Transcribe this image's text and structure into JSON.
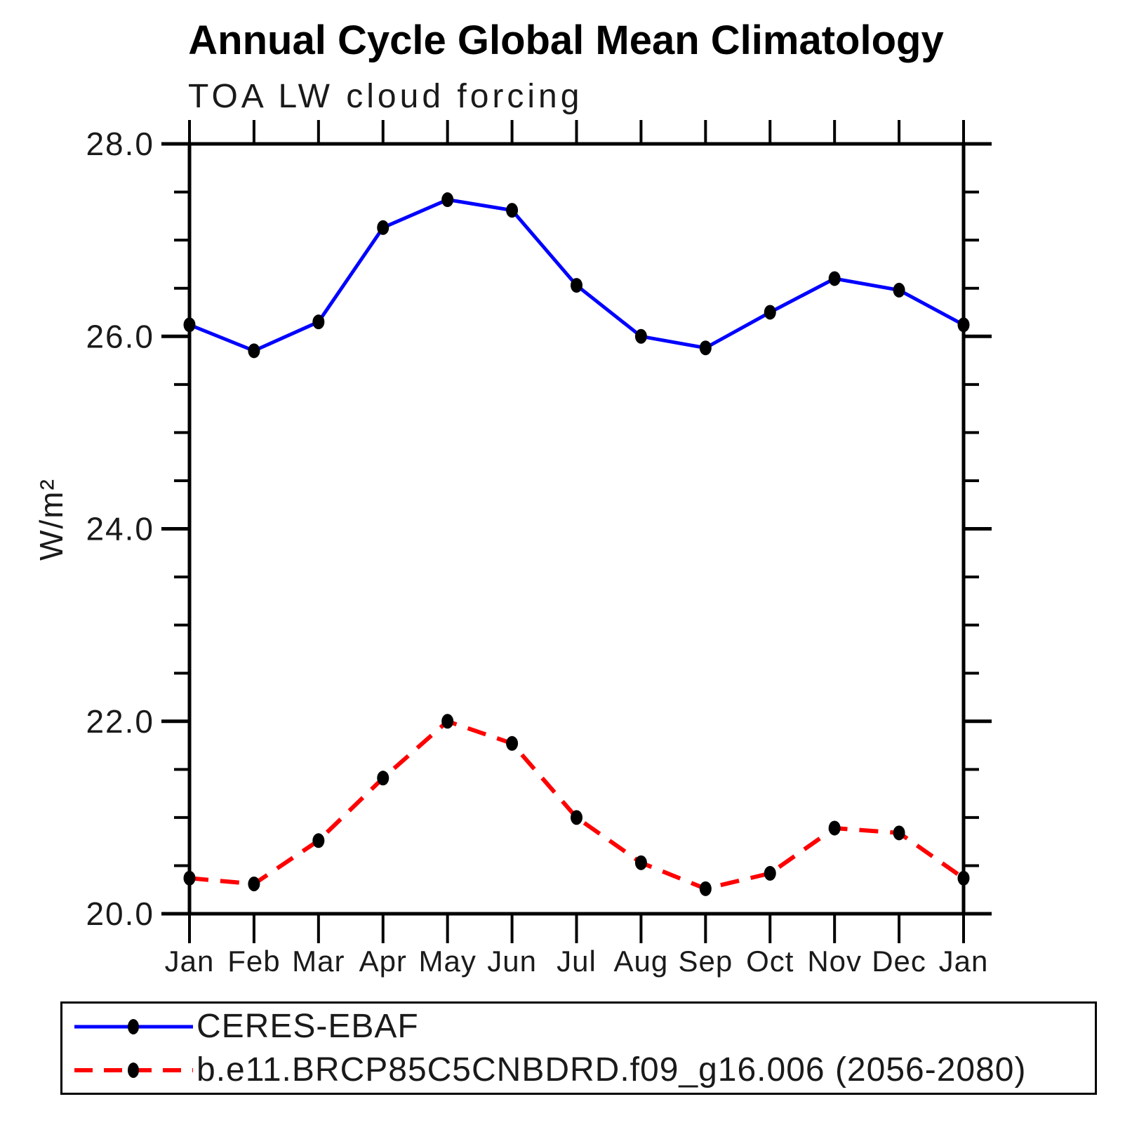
{
  "chart_data": {
    "type": "line",
    "title": "Annual Cycle Global Mean Climatology",
    "subtitle": "TOA LW cloud forcing",
    "ylabel": "W/m²",
    "xlabel": "",
    "ylim": [
      20.0,
      28.0
    ],
    "ytick_major_step": 2.0,
    "ytick_minor_step": 0.5,
    "ytick_labels": [
      "20.0",
      "22.0",
      "24.0",
      "26.0",
      "28.0"
    ],
    "categories": [
      "Jan",
      "Feb",
      "Mar",
      "Apr",
      "May",
      "Jun",
      "Jul",
      "Aug",
      "Sep",
      "Oct",
      "Nov",
      "Dec",
      "Jan"
    ],
    "series": [
      {
        "name": "CERES-EBAF",
        "color": "#0000ff",
        "line_style": "solid",
        "marker": "filled-circle",
        "marker_color": "#000000",
        "values": [
          26.12,
          25.85,
          26.15,
          27.13,
          27.42,
          27.31,
          26.53,
          26.0,
          25.88,
          26.25,
          26.6,
          26.48,
          26.12
        ]
      },
      {
        "name": "b.e11.BRCP85C5CNBDRD.f09_g16.006 (2056-2080)",
        "color": "#ff0000",
        "line_style": "dashed",
        "marker": "filled-circle",
        "marker_color": "#000000",
        "values": [
          20.37,
          20.31,
          20.76,
          21.41,
          22.0,
          21.77,
          21.0,
          20.53,
          20.26,
          20.42,
          20.89,
          20.84,
          20.37
        ]
      }
    ],
    "layout": {
      "grid": false,
      "frame": true,
      "mirrored_axes": true,
      "tick_direction": "out",
      "legend_position": "bottom"
    }
  }
}
